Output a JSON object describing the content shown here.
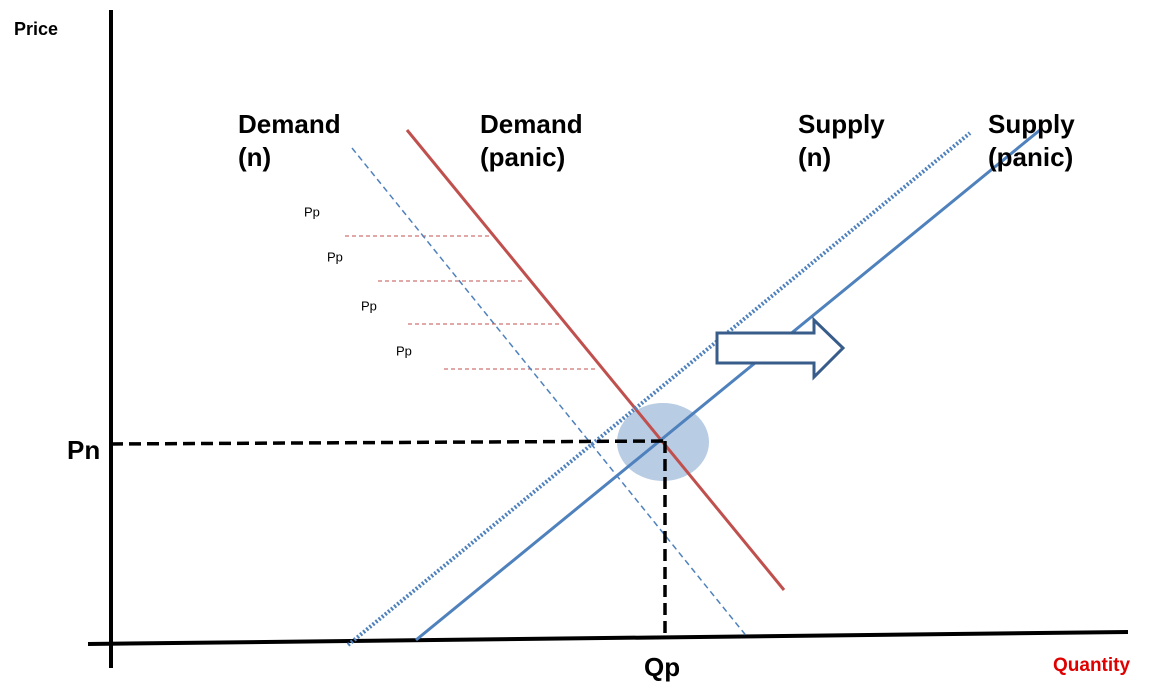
{
  "axes": {
    "y_label": "Price",
    "x_label": "Quantity"
  },
  "curves": [
    {
      "line1": "Demand",
      "line2": "(n)"
    },
    {
      "line1": "Demand",
      "line2": "(panic)"
    },
    {
      "line1": "Supply",
      "line2": "(n)"
    },
    {
      "line1": "Supply",
      "line2": "(panic)"
    }
  ],
  "price_labels": [
    "Pp",
    "Pp",
    "Pp",
    "Pp"
  ],
  "equilibrium": {
    "price": "Pn",
    "quantity": "Qp"
  }
}
